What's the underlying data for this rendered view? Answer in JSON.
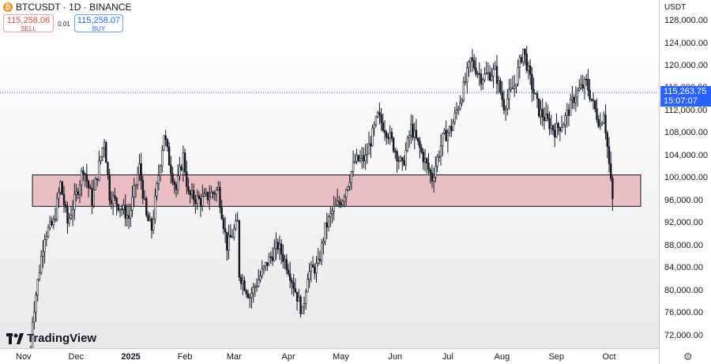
{
  "header": {
    "symbol_line": "BTCUSDT · 1D · BINANCE",
    "logo_icon": "bitcoin-icon",
    "sell_price": "115,258.06",
    "sell_label": "SELL",
    "spread": "0.01",
    "buy_price": "115,258.07",
    "buy_label": "BUY"
  },
  "price_axis": {
    "currency": "USDT"
  },
  "last_price": {
    "value": "115,263.75",
    "countdown": "15:07:07"
  },
  "branding": {
    "name": "TradingView"
  },
  "colors": {
    "up": "#131722",
    "down": "#131722",
    "zone_fill": "#e8b4b8",
    "price_line": "#2962ff"
  },
  "chart_data": {
    "type": "candlestick",
    "y_ticks": [
      72000,
      76000,
      80000,
      84000,
      88000,
      92000,
      96000,
      100000,
      104000,
      108000,
      112000,
      116000,
      120000,
      124000,
      128000
    ],
    "y_tick_labels": [
      "72,000.00",
      "76,000.00",
      "80,000.00",
      "84,000.00",
      "88,000.00",
      "92,000.00",
      "96,000.00",
      "100,000.00",
      "104,000.00",
      "108,000.00",
      "112,000.00",
      "116,000.00",
      "120,000.00",
      "124,000.00",
      "128,000.00"
    ],
    "ylim": [
      70000,
      131000
    ],
    "x_labels": [
      {
        "label": "Nov",
        "date": "2024-11-01",
        "bold": false
      },
      {
        "label": "Dec",
        "date": "2024-12-01",
        "bold": false
      },
      {
        "label": "2025",
        "date": "2025-01-01",
        "bold": true
      },
      {
        "label": "Feb",
        "date": "2025-02-01",
        "bold": false
      },
      {
        "label": "Mar",
        "date": "2025-03-01",
        "bold": false
      },
      {
        "label": "Apr",
        "date": "2025-04-01",
        "bold": false
      },
      {
        "label": "May",
        "date": "2025-05-01",
        "bold": false
      },
      {
        "label": "Jun",
        "date": "2025-06-01",
        "bold": false
      },
      {
        "label": "Jul",
        "date": "2025-07-01",
        "bold": false
      },
      {
        "label": "Aug",
        "date": "2025-08-01",
        "bold": false
      },
      {
        "label": "Sep",
        "date": "2025-09-01",
        "bold": false
      },
      {
        "label": "Oct",
        "date": "2025-10-01",
        "bold": false
      }
    ],
    "zone": {
      "from_date": "2024-11-06",
      "to_date": "2025-10-19",
      "low": 95000,
      "high": 100600
    },
    "last_price_value": 115263.75,
    "price_path": [
      [
        "2024-11-05",
        69000
      ],
      [
        "2024-11-06",
        75000
      ],
      [
        "2024-11-11",
        86000
      ],
      [
        "2024-11-13",
        90000
      ],
      [
        "2024-11-18",
        92000
      ],
      [
        "2024-11-22",
        99000
      ],
      [
        "2024-11-26",
        92000
      ],
      [
        "2024-12-01",
        97000
      ],
      [
        "2024-12-05",
        102000
      ],
      [
        "2024-12-10",
        96000
      ],
      [
        "2024-12-17",
        107000
      ],
      [
        "2024-12-20",
        97000
      ],
      [
        "2024-12-26",
        95000
      ],
      [
        "2024-12-31",
        93000
      ],
      [
        "2025-01-06",
        102000
      ],
      [
        "2025-01-10",
        93000
      ],
      [
        "2025-01-13",
        91000
      ],
      [
        "2025-01-20",
        108000
      ],
      [
        "2025-01-23",
        103000
      ],
      [
        "2025-01-27",
        98000
      ],
      [
        "2025-01-31",
        104000
      ],
      [
        "2025-02-03",
        97000
      ],
      [
        "2025-02-10",
        96000
      ],
      [
        "2025-02-20",
        98000
      ],
      [
        "2025-02-25",
        88000
      ],
      [
        "2025-03-03",
        92000
      ],
      [
        "2025-03-04",
        83000
      ],
      [
        "2025-03-10",
        79000
      ],
      [
        "2025-03-20",
        85000
      ],
      [
        "2025-03-26",
        88000
      ],
      [
        "2025-04-01",
        84000
      ],
      [
        "2025-04-07",
        78000
      ],
      [
        "2025-04-09",
        76000
      ],
      [
        "2025-04-12",
        83000
      ],
      [
        "2025-04-18",
        84500
      ],
      [
        "2025-04-22",
        91000
      ],
      [
        "2025-04-26",
        94000
      ],
      [
        "2025-05-02",
        96500
      ],
      [
        "2025-05-09",
        103000
      ],
      [
        "2025-05-15",
        103500
      ],
      [
        "2025-05-22",
        111000
      ],
      [
        "2025-05-28",
        108000
      ],
      [
        "2025-06-05",
        102000
      ],
      [
        "2025-06-10",
        109000
      ],
      [
        "2025-06-22",
        100000
      ],
      [
        "2025-06-28",
        107000
      ],
      [
        "2025-07-03",
        109000
      ],
      [
        "2025-07-10",
        116000
      ],
      [
        "2025-07-14",
        121000
      ],
      [
        "2025-07-20",
        118000
      ],
      [
        "2025-07-28",
        119000
      ],
      [
        "2025-08-02",
        113000
      ],
      [
        "2025-08-08",
        116500
      ],
      [
        "2025-08-13",
        123000
      ],
      [
        "2025-08-17",
        117500
      ],
      [
        "2025-08-22",
        112000
      ],
      [
        "2025-08-31",
        108500
      ],
      [
        "2025-09-05",
        110000
      ],
      [
        "2025-09-12",
        115000
      ],
      [
        "2025-09-18",
        117000
      ],
      [
        "2025-09-22",
        113000
      ],
      [
        "2025-09-26",
        109500
      ],
      [
        "2025-09-28",
        112000
      ],
      [
        "2025-10-03",
        96000
      ]
    ]
  }
}
